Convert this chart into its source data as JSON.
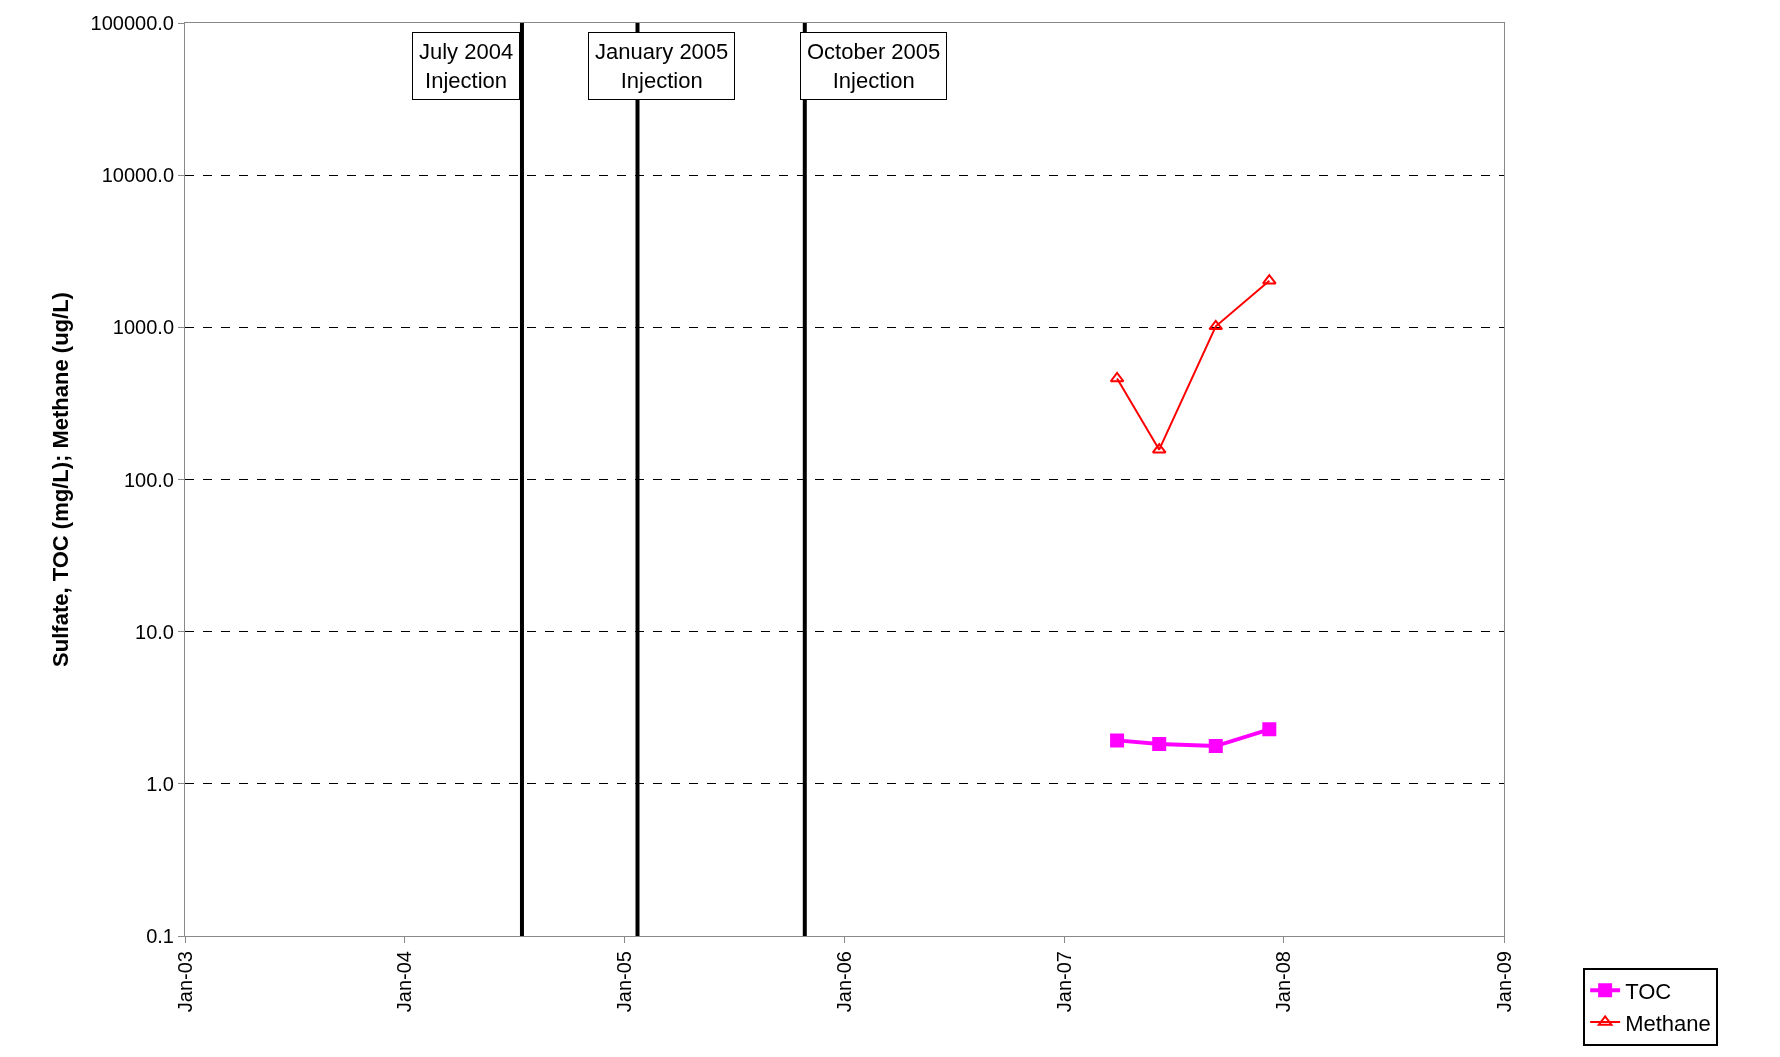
{
  "chart_data": {
    "type": "line",
    "ylabel": "Sulfate, TOC (mg/L); Methane (ug/L)",
    "x": [
      "2007-03-30",
      "2007-06-08",
      "2007-09-10",
      "2007-12-08"
    ],
    "series": [
      {
        "name": "TOC",
        "color": "#ff00ff",
        "values": [
          1.93,
          1.83,
          1.77,
          2.28
        ],
        "marker": "square"
      },
      {
        "name": "Methane",
        "color": "#ff0000",
        "values": [
          461,
          157,
          1016,
          2027
        ],
        "marker": "triangle"
      }
    ],
    "log": "y",
    "ylim": [
      0.1,
      100000
    ],
    "yticks": [
      {
        "value": 0.1,
        "label": "0.1"
      },
      {
        "value": 1,
        "label": "1.0"
      },
      {
        "value": 10,
        "label": "10.0"
      },
      {
        "value": 100,
        "label": "100.0"
      },
      {
        "value": 1000,
        "label": "1000.0"
      },
      {
        "value": 10000,
        "label": "10000.0"
      },
      {
        "value": 100000,
        "label": "100000.0"
      }
    ],
    "xlim": [
      "2003-01-01",
      "2009-01-01"
    ],
    "xticks": [
      {
        "value": "2003-01-01",
        "label": "Jan-03"
      },
      {
        "value": "2004-01-01",
        "label": "Jan-04"
      },
      {
        "value": "2005-01-01",
        "label": "Jan-05"
      },
      {
        "value": "2006-01-01",
        "label": "Jan-06"
      },
      {
        "value": "2007-01-01",
        "label": "Jan-07"
      },
      {
        "value": "2008-01-01",
        "label": "Jan-08"
      },
      {
        "value": "2009-01-01",
        "label": "Jan-09"
      }
    ],
    "ref_lines": [
      {
        "axis": "x",
        "value": "2004-07-14",
        "label": "July 2004\nInjection",
        "color": "#000000"
      },
      {
        "axis": "x",
        "value": "2005-01-22",
        "label": "January 2005\nInjection",
        "color": "#000000"
      },
      {
        "axis": "x",
        "value": "2005-10-27",
        "label": "October 2005\nInjection",
        "color": "#000000"
      }
    ],
    "grid": "y",
    "legend": "bottom right"
  }
}
